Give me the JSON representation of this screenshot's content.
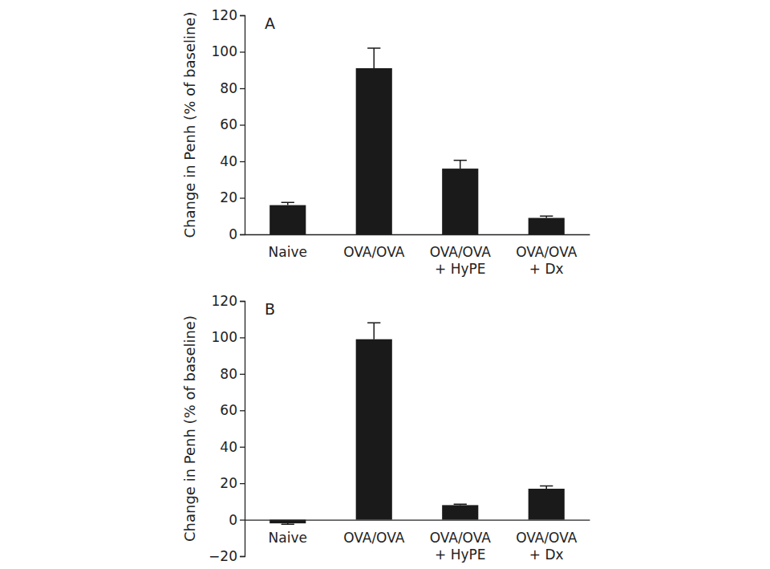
{
  "chart_data": [
    {
      "type": "bar",
      "annotations": [
        "A"
      ],
      "y_label": "Change in Penh (% of baseline)",
      "categories": [
        "Naive",
        "OVA/OVA",
        "OVA/OVA + HyPE",
        "OVA/OVA + Dx"
      ],
      "values": [
        16,
        91,
        36,
        9
      ],
      "errors": [
        1.5,
        11,
        4.5,
        1
      ],
      "color": "#1a1a1a",
      "ylim": [
        0,
        120
      ],
      "yticks": [
        0,
        20,
        40,
        60,
        80,
        100,
        120
      ]
    },
    {
      "type": "bar",
      "annotations": [
        "B"
      ],
      "y_label": "Change in Penh (% of baseline)",
      "categories": [
        "Naive",
        "OVA/OVA",
        "OVA/OVA + HyPE",
        "OVA/OVA + Dx"
      ],
      "values": [
        -2,
        99,
        8,
        17
      ],
      "errors": [
        0.5,
        9,
        0.5,
        1.5
      ],
      "color": "#1a1a1a",
      "ylim": [
        -20,
        120
      ],
      "yticks": [
        {
          "value": -20,
          "label": "−20"
        },
        0,
        20,
        40,
        60,
        80,
        100,
        120
      ]
    }
  ]
}
